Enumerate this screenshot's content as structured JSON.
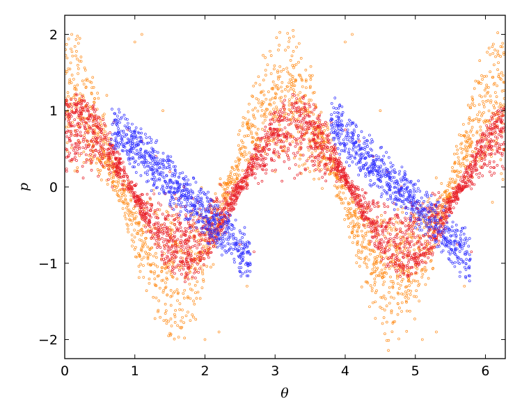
{
  "chart_data": {
    "type": "scatter",
    "title": "",
    "xlabel": "θ",
    "ylabel": "p",
    "xlim": [
      0,
      6.2832
    ],
    "ylim": [
      -2.25,
      2.25
    ],
    "xticks": [
      "0",
      "1",
      "2",
      "3",
      "4",
      "5",
      "6"
    ],
    "yticks": [
      "−2",
      "−1",
      "0",
      "1",
      "2"
    ],
    "grid": false,
    "legend": "none",
    "marker": "open-circle",
    "series": [
      {
        "color": "#3030ff",
        "region": "inner island and nearby chaotic band",
        "p_amplitude": [
          0.05,
          0.85
        ],
        "x": [
          0.95,
          1.05,
          1.15,
          1.25,
          1.35,
          1.45,
          1.55,
          1.65,
          1.75,
          1.85,
          1.95,
          2.05,
          2.15,
          2.25,
          2.35,
          4.1,
          4.2,
          4.3,
          4.4,
          4.5,
          4.6,
          4.7,
          4.8,
          4.9,
          5.0,
          5.1,
          5.2,
          5.3,
          5.4,
          5.5
        ],
        "y": [
          0.65,
          0.55,
          0.45,
          0.35,
          0.25,
          0.15,
          0.05,
          -0.05,
          -0.15,
          -0.25,
          -0.35,
          -0.45,
          -0.55,
          -0.65,
          -0.75,
          0.65,
          0.55,
          0.45,
          0.35,
          0.25,
          0.15,
          0.05,
          -0.05,
          -0.15,
          -0.25,
          -0.35,
          -0.45,
          -0.55,
          -0.65,
          -0.75
        ]
      },
      {
        "color": "#e8202a",
        "region": "mid chaotic band",
        "p_amplitude": [
          0.1,
          1.15
        ],
        "x": [
          0.5,
          0.7,
          0.9,
          1.1,
          1.3,
          1.5,
          1.7,
          1.9,
          2.1,
          2.3,
          2.5,
          2.7,
          3.6,
          3.8,
          4.0,
          4.2,
          4.4,
          4.6,
          4.8,
          5.0,
          5.2,
          5.4,
          5.6,
          5.8
        ],
        "y": [
          0.9,
          0.85,
          0.75,
          0.6,
          0.4,
          0.2,
          0.0,
          -0.2,
          -0.4,
          -0.6,
          -0.75,
          -0.85,
          0.9,
          0.85,
          0.75,
          0.6,
          0.4,
          0.2,
          0.0,
          -0.2,
          -0.4,
          -0.6,
          -0.75,
          -0.85
        ]
      },
      {
        "color": "#ff8c1a",
        "region": "outer chaotic sea",
        "p_amplitude": [
          0.15,
          2.0
        ],
        "x": [
          0.1,
          0.3,
          0.6,
          1.0,
          1.1,
          1.4,
          1.8,
          2.0,
          2.2,
          2.6,
          3.0,
          3.3,
          3.5,
          4.0,
          4.1,
          4.5,
          4.9,
          5.1,
          5.3,
          5.7,
          6.1
        ],
        "y": [
          2.0,
          1.4,
          1.2,
          1.9,
          2.0,
          1.0,
          -0.9,
          -2.0,
          -1.9,
          -1.3,
          0.2,
          0.8,
          1.3,
          1.9,
          2.0,
          1.0,
          -0.9,
          -2.0,
          -1.9,
          -1.3,
          -0.2
        ]
      }
    ]
  }
}
